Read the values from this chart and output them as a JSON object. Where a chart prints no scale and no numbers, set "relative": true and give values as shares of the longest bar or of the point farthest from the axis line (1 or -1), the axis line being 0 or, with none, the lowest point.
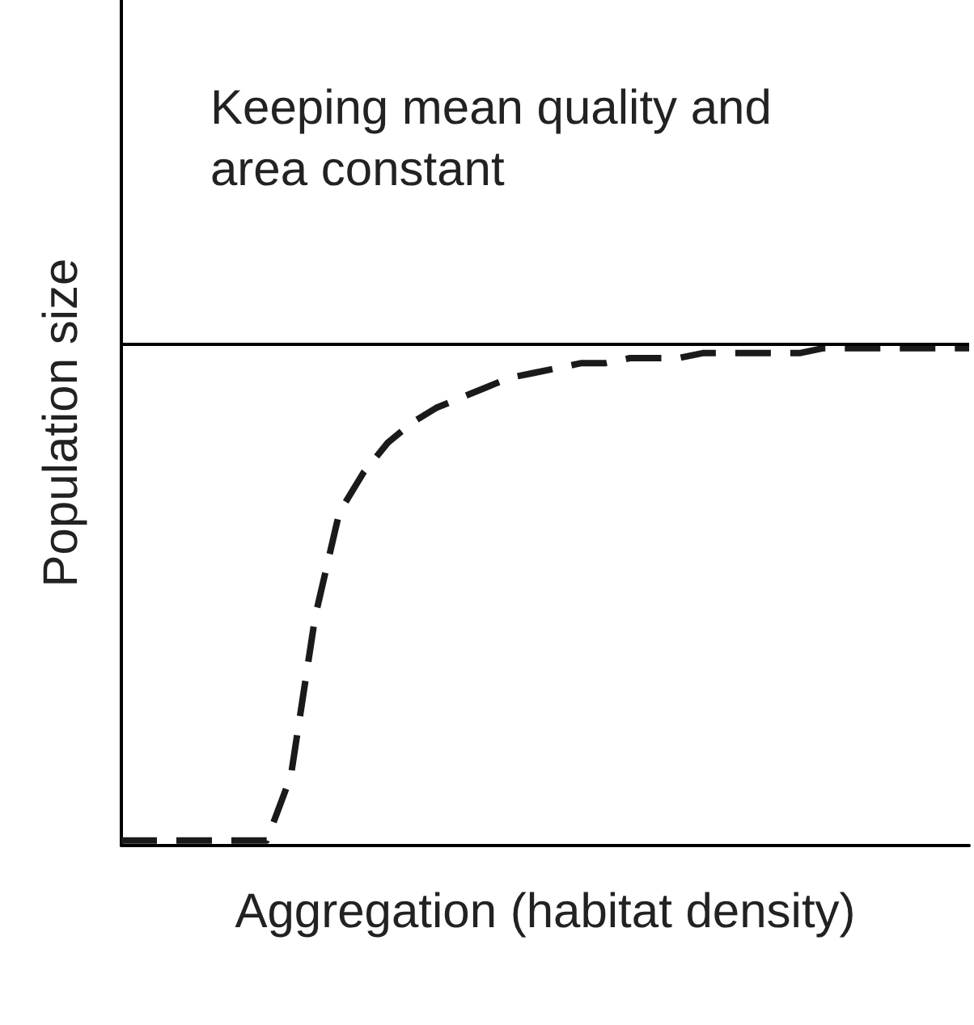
{
  "chart_data": {
    "type": "line",
    "relative": true,
    "xlabel": "Aggregation (habitat density)",
    "ylabel": "Population size",
    "annotations": [
      "Keeping mean quality and area constant"
    ],
    "categories": [
      null,
      null,
      null,
      null,
      null,
      null,
      null,
      null,
      null,
      null,
      null,
      null,
      null,
      null,
      null,
      null,
      null,
      null,
      null,
      null,
      null,
      null,
      null,
      null,
      null,
      null,
      null,
      null,
      null,
      null,
      null,
      null,
      null,
      null,
      null,
      null
    ],
    "series": [
      {
        "color": "#1a1a1a",
        "values": [
          0.01,
          0.01,
          0.01,
          0.01,
          0.01,
          0.01,
          0.01,
          0.14,
          0.46,
          0.67,
          0.75,
          0.81,
          0.85,
          0.88,
          0.9,
          0.92,
          0.94,
          0.95,
          0.96,
          0.97,
          0.97,
          0.98,
          0.98,
          0.98,
          0.99,
          0.99,
          0.99,
          0.99,
          0.99,
          1,
          1,
          1,
          1,
          1,
          1,
          1
        ]
      }
    ],
    "ref_lines": [
      {
        "axis": "y",
        "value": 1.01,
        "color": "#000000",
        "line_style": "solid"
      }
    ],
    "line_style": "dashed",
    "marker": "none",
    "grid": false
  }
}
